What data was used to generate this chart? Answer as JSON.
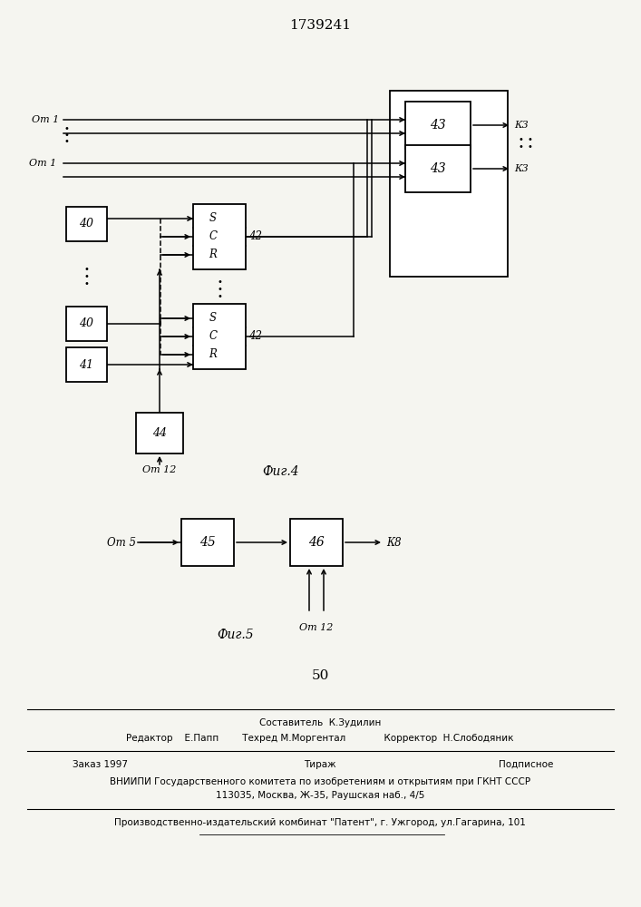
{
  "title": "1739241",
  "bg_color": "#f5f5f0",
  "fig4_label": "Фиг.4",
  "fig5_label": "Фиг.5",
  "page_number": "50"
}
